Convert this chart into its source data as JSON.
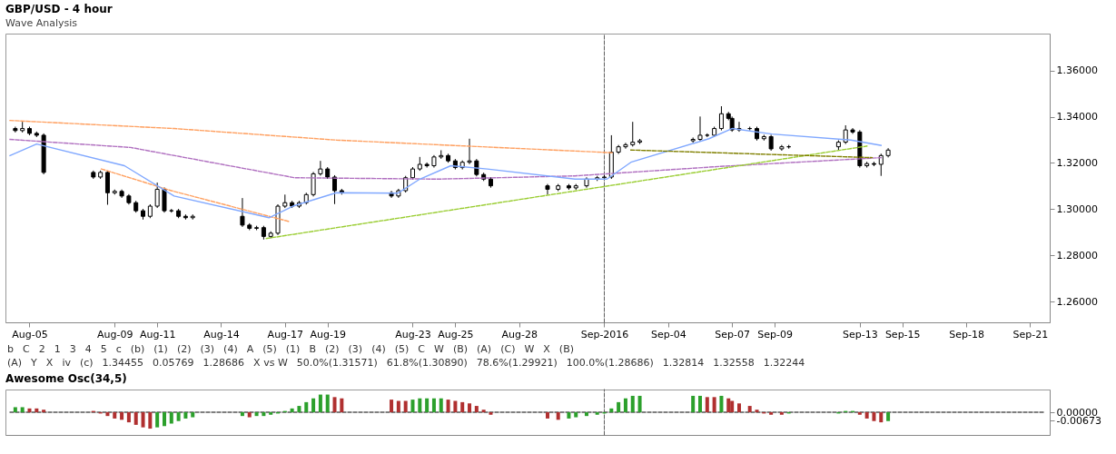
{
  "chart_data": [
    {
      "type": "candlestick",
      "title": "GBP/USD - 4 hour",
      "subtitle": "Wave Analysis",
      "color": "#000000",
      "x": [
        "2016-08-04T08:00",
        "2016-08-04T16:00",
        "2016-08-05T00:00",
        "2016-08-05T08:00",
        "2016-08-05T16:00",
        "2016-08-08T00:00",
        "2016-08-08T08:00",
        "2016-08-08T16:00",
        "2016-08-09T00:00",
        "2016-08-09T08:00",
        "2016-08-09T16:00",
        "2016-08-10T00:00",
        "2016-08-10T08:00",
        "2016-08-10T16:00",
        "2016-08-11T00:00",
        "2016-08-11T08:00",
        "2016-08-11T16:00",
        "2016-08-12T00:00",
        "2016-08-12T08:00",
        "2016-08-12T16:00",
        "2016-08-15T00:00",
        "2016-08-15T08:00",
        "2016-08-15T16:00",
        "2016-08-16T00:00",
        "2016-08-16T08:00",
        "2016-08-16T16:00",
        "2016-08-17T00:00",
        "2016-08-17T08:00",
        "2016-08-17T16:00",
        "2016-08-18T00:00",
        "2016-08-18T08:00",
        "2016-08-18T16:00",
        "2016-08-19T00:00",
        "2016-08-19T08:00",
        "2016-08-19T16:00",
        "2016-08-22T00:00",
        "2016-08-22T08:00",
        "2016-08-22T16:00",
        "2016-08-23T00:00",
        "2016-08-23T08:00",
        "2016-08-23T16:00",
        "2016-08-24T00:00",
        "2016-08-24T08:00",
        "2016-08-24T16:00",
        "2016-08-25T00:00",
        "2016-08-25T08:00",
        "2016-08-25T16:00",
        "2016-08-26T00:00",
        "2016-08-26T08:00",
        "2016-08-26T16:00",
        "2016-08-29T08:00",
        "2016-08-29T20:00",
        "2016-08-30T08:00",
        "2016-08-30T16:00",
        "2016-08-31T04:00",
        "2016-08-31T16:00",
        "2016-09-01T00:00",
        "2016-09-01T08:00",
        "2016-09-01T16:00",
        "2016-09-02T00:00",
        "2016-09-02T08:00",
        "2016-09-02T16:00",
        "2016-09-05T04:00",
        "2016-09-05T12:00",
        "2016-09-05T20:00",
        "2016-09-06T04:00",
        "2016-09-06T12:00",
        "2016-09-06T20:00",
        "2016-09-07T00:00",
        "2016-09-07T08:00",
        "2016-09-07T20:00",
        "2016-09-08T04:00",
        "2016-09-08T12:00",
        "2016-09-08T20:00",
        "2016-09-09T08:00",
        "2016-09-09T16:00",
        "2016-09-12T00:00",
        "2016-09-12T08:00",
        "2016-09-12T16:00",
        "2016-09-13T00:00",
        "2016-09-13T08:00",
        "2016-09-13T16:00",
        "2016-09-14T00:00",
        "2016-09-14T08:00"
      ],
      "ohlc": [
        [
          1.3349,
          1.3357,
          1.3332,
          1.334
        ],
        [
          1.334,
          1.3378,
          1.3332,
          1.3349
        ],
        [
          1.3349,
          1.3357,
          1.332,
          1.3328
        ],
        [
          1.3328,
          1.3336,
          1.3312,
          1.332
        ],
        [
          1.332,
          1.3328,
          1.3151,
          1.3159
        ],
        [
          1.3159,
          1.3167,
          1.3131,
          1.3139
        ],
        [
          1.3139,
          1.3167,
          1.3131,
          1.3159
        ],
        [
          1.3159,
          1.3167,
          1.3019,
          1.3071
        ],
        [
          1.3071,
          1.3085,
          1.3063,
          1.3077
        ],
        [
          1.3077,
          1.3085,
          1.3049,
          1.3057
        ],
        [
          1.3057,
          1.3065,
          1.302,
          1.3028
        ],
        [
          1.3028,
          1.3036,
          1.2985,
          1.2993
        ],
        [
          1.2993,
          1.3001,
          1.2955,
          1.2969
        ],
        [
          1.2969,
          1.3021,
          1.2961,
          1.3013
        ],
        [
          1.3013,
          1.3115,
          1.3005,
          1.3086
        ],
        [
          1.3086,
          1.3094,
          1.2985,
          1.2993
        ],
        [
          1.2993,
          1.3001,
          1.2985,
          1.2993
        ],
        [
          1.2993,
          1.3001,
          1.2961,
          1.2969
        ],
        [
          1.2969,
          1.2977,
          1.2955,
          1.2963
        ],
        [
          1.2963,
          1.2977,
          1.2955,
          1.2969
        ],
        [
          1.2969,
          1.3048,
          1.2923,
          1.2931
        ],
        [
          1.2931,
          1.2939,
          1.2909,
          1.2917
        ],
        [
          1.2917,
          1.2928,
          1.2909,
          1.292
        ],
        [
          1.292,
          1.2928,
          1.28686,
          1.2882
        ],
        [
          1.2882,
          1.2904,
          1.2874,
          1.2896
        ],
        [
          1.2896,
          1.3021,
          1.2888,
          1.3013
        ],
        [
          1.3013,
          1.3063,
          1.3005,
          1.3028
        ],
        [
          1.3028,
          1.3036,
          1.3005,
          1.3013
        ],
        [
          1.3013,
          1.3036,
          1.3005,
          1.3028
        ],
        [
          1.3028,
          1.3071,
          1.302,
          1.3063
        ],
        [
          1.3063,
          1.3161,
          1.3055,
          1.3153
        ],
        [
          1.3153,
          1.3209,
          1.3145,
          1.3174
        ],
        [
          1.3174,
          1.3182,
          1.3131,
          1.3139
        ],
        [
          1.3139,
          1.3147,
          1.3022,
          1.308
        ],
        [
          1.308,
          1.3088,
          1.3063,
          1.3071
        ],
        [
          1.3071,
          1.3079,
          1.3049,
          1.3057
        ],
        [
          1.3057,
          1.3088,
          1.3049,
          1.308
        ],
        [
          1.308,
          1.3144,
          1.3072,
          1.3136
        ],
        [
          1.3136,
          1.3182,
          1.3128,
          1.3174
        ],
        [
          1.3174,
          1.3226,
          1.3166,
          1.3194
        ],
        [
          1.3194,
          1.3202,
          1.318,
          1.3188
        ],
        [
          1.3188,
          1.3234,
          1.318,
          1.3226
        ],
        [
          1.3226,
          1.3255,
          1.3218,
          1.3232
        ],
        [
          1.3232,
          1.324,
          1.3201,
          1.3209
        ],
        [
          1.3209,
          1.3217,
          1.3172,
          1.318
        ],
        [
          1.318,
          1.3211,
          1.3172,
          1.3203
        ],
        [
          1.3203,
          1.3305,
          1.3195,
          1.3209
        ],
        [
          1.3209,
          1.3217,
          1.3142,
          1.315
        ],
        [
          1.315,
          1.3158,
          1.3122,
          1.313
        ],
        [
          1.313,
          1.3138,
          1.3093,
          1.3101
        ],
        [
          1.3101,
          1.3109,
          1.3063,
          1.3086
        ],
        [
          1.3086,
          1.3109,
          1.3078,
          1.3101
        ],
        [
          1.3101,
          1.3109,
          1.3084,
          1.3092
        ],
        [
          1.3092,
          1.3109,
          1.3084,
          1.3101
        ],
        [
          1.3101,
          1.3138,
          1.3093,
          1.313
        ],
        [
          1.313,
          1.3144,
          1.3122,
          1.3136
        ],
        [
          1.3136,
          1.3147,
          1.3128,
          1.3139
        ],
        [
          1.3139,
          1.332,
          1.3131,
          1.3247
        ],
        [
          1.3247,
          1.3278,
          1.3239,
          1.327
        ],
        [
          1.327,
          1.3287,
          1.3262,
          1.3279
        ],
        [
          1.3279,
          1.3378,
          1.3271,
          1.329
        ],
        [
          1.329,
          1.3304,
          1.3282,
          1.3296
        ],
        [
          1.3296,
          1.331,
          1.3288,
          1.3302
        ],
        [
          1.3302,
          1.3401,
          1.3294,
          1.332
        ],
        [
          1.332,
          1.3328,
          1.3312,
          1.332
        ],
        [
          1.332,
          1.3357,
          1.3312,
          1.3349
        ],
        [
          1.3349,
          1.34455,
          1.3341,
          1.3413
        ],
        [
          1.3413,
          1.3421,
          1.3385,
          1.3393
        ],
        [
          1.3393,
          1.3401,
          1.3335,
          1.3343
        ],
        [
          1.3343,
          1.3378,
          1.3335,
          1.3349
        ],
        [
          1.3349,
          1.3357,
          1.3341,
          1.3349
        ],
        [
          1.3349,
          1.3357,
          1.3297,
          1.3305
        ],
        [
          1.3305,
          1.3322,
          1.3297,
          1.3314
        ],
        [
          1.3314,
          1.3322,
          1.3253,
          1.3261
        ],
        [
          1.3261,
          1.3278,
          1.3253,
          1.327
        ],
        [
          1.327,
          1.3278,
          1.3262,
          1.327
        ],
        [
          1.327,
          1.3298,
          1.3255,
          1.329
        ],
        [
          1.329,
          1.3363,
          1.3282,
          1.3343
        ],
        [
          1.3343,
          1.3351,
          1.3326,
          1.3334
        ],
        [
          1.3334,
          1.3342,
          1.318,
          1.3188
        ],
        [
          1.3188,
          1.3205,
          1.318,
          1.3197
        ],
        [
          1.3197,
          1.3205,
          1.3186,
          1.3194
        ],
        [
          1.3194,
          1.324,
          1.3144,
          1.3232
        ],
        [
          1.3232,
          1.3264,
          1.3224,
          1.32558
        ]
      ],
      "series": [
        {
          "type": "line",
          "color": "#ffa060",
          "line_style": "dashed",
          "x": [
            "2016-08-04T02:00",
            "2016-08-11T19:00",
            "2016-08-19T10:00",
            "2016-09-01T10:00"
          ],
          "values": [
            1.3384,
            1.3349,
            1.3299,
            1.3244
          ]
        },
        {
          "type": "line",
          "color": "#ffa060",
          "line_style": "dashed",
          "x": [
            "2016-08-08T09:00",
            "2016-08-11T16:00",
            "2016-08-17T05:00"
          ],
          "values": [
            1.3174,
            1.308,
            1.2946
          ]
        },
        {
          "type": "line",
          "color": "#b070c0",
          "line_style": "dashed",
          "x": [
            "2016-08-04T02:00",
            "2016-08-09T18:00",
            "2016-08-15T05:00",
            "2016-08-17T11:00",
            "2016-08-24T05:00",
            "2016-08-30T15:00",
            "2016-09-06T11:00",
            "2016-09-14T00:00"
          ],
          "values": [
            1.3302,
            1.3267,
            1.3174,
            1.3136,
            1.313,
            1.3144,
            1.3185,
            1.3223
          ]
        },
        {
          "type": "line",
          "color": "#80a8ff",
          "line_style": "solid",
          "x": [
            "2016-08-04T02:00",
            "2016-08-05T08:00",
            "2016-08-09T11:00",
            "2016-08-11T19:00",
            "2016-08-16T06:00",
            "2016-08-17T09:00",
            "2016-08-19T10:00",
            "2016-08-22T07:00",
            "2016-08-23T08:00",
            "2016-08-24T19:00",
            "2016-08-26T12:00",
            "2016-08-30T15:00",
            "2016-09-01T03:00",
            "2016-09-02T06:00",
            "2016-09-05T22:00",
            "2016-09-07T00:00",
            "2016-09-08T21:00",
            "2016-09-12T14:00",
            "2016-09-14T00:00"
          ],
          "values": [
            1.3232,
            1.3282,
            1.3188,
            1.3057,
            1.2963,
            1.3013,
            1.3071,
            1.3069,
            1.313,
            1.3188,
            1.3174,
            1.313,
            1.313,
            1.3203,
            1.3305,
            1.3349,
            1.3325,
            1.3299,
            1.3276
          ]
        },
        {
          "type": "line",
          "color": "#9acd32",
          "line_style": "dashed",
          "x": [
            "2016-08-16T03:00",
            "2016-09-13T08:00"
          ],
          "values": [
            1.2873,
            1.3273
          ]
        },
        {
          "type": "line",
          "color": "#808000",
          "line_style": "dashed",
          "x": [
            "2016-09-02T06:00",
            "2016-09-13T14:00"
          ],
          "values": [
            1.3256,
            1.3223
          ]
        }
      ],
      "ref_lines": [
        {
          "axis": "x",
          "value": "2016-09-01T00:00",
          "line_style": "dashed",
          "color": "#606060"
        }
      ],
      "annotations": [
        "b",
        "C",
        "2",
        "1",
        "3",
        "4",
        "5",
        "c",
        "(b)",
        "(1)",
        "(2)",
        "(3)",
        "(4)",
        "A",
        "(5)",
        "(1)",
        "B",
        "(2)",
        "(3)",
        "(4)",
        "(5)",
        "C",
        "W",
        "(B)",
        "(A)",
        "(C)",
        "W",
        "X",
        "(B)",
        "(A)",
        "Y",
        "X",
        "iv",
        "(c)",
        "1.34455",
        "0.05769",
        "1.28686",
        "X vs W",
        "50.0%(1.31571)",
        "61.8%(1.30890)",
        "78.6%(1.29921)",
        "100.0%(1.28686)",
        "1.32814",
        "1.32558",
        "1.32244"
      ],
      "xlim": [
        "2016-08-04T02:00",
        "2016-09-21T17:00"
      ],
      "xticks": [
        {
          "value": "2016-08-05",
          "label": "Aug-05"
        },
        {
          "value": "2016-08-09",
          "label": "Aug-09"
        },
        {
          "value": "2016-08-11",
          "label": "Aug-11"
        },
        {
          "value": "2016-08-14",
          "label": "Aug-14"
        },
        {
          "value": "2016-08-17",
          "label": "Aug-17"
        },
        {
          "value": "2016-08-19",
          "label": "Aug-19"
        },
        {
          "value": "2016-08-23",
          "label": "Aug-23"
        },
        {
          "value": "2016-08-25",
          "label": "Aug-25"
        },
        {
          "value": "2016-08-28",
          "label": "Aug-28"
        },
        {
          "value": "2016-09-01",
          "label": "Sep-2016"
        },
        {
          "value": "2016-09-04",
          "label": "Sep-04"
        },
        {
          "value": "2016-09-07",
          "label": "Sep-07"
        },
        {
          "value": "2016-09-09",
          "label": "Sep-09"
        },
        {
          "value": "2016-09-13",
          "label": "Sep-13"
        },
        {
          "value": "2016-09-15",
          "label": "Sep-15"
        },
        {
          "value": "2016-09-18",
          "label": "Sep-18"
        },
        {
          "value": "2016-09-21",
          "label": "Sep-21"
        }
      ],
      "ylim": [
        1.251,
        1.376
      ],
      "yticks": [
        {
          "value": 1.26,
          "label": "1.26000"
        },
        {
          "value": 1.28,
          "label": "1.28000"
        },
        {
          "value": 1.3,
          "label": "1.30000"
        },
        {
          "value": 1.32,
          "label": "1.32000"
        },
        {
          "value": 1.34,
          "label": "1.34000"
        },
        {
          "value": 1.36,
          "label": "1.36000"
        }
      ]
    },
    {
      "type": "bar",
      "title": "Awesome Osc(34,5)",
      "x": [
        "2016-08-04T08:00",
        "2016-08-04T16:00",
        "2016-08-05T00:00",
        "2016-08-05T08:00",
        "2016-08-05T16:00",
        "2016-08-08T00:00",
        "2016-08-08T08:00",
        "2016-08-08T16:00",
        "2016-08-09T00:00",
        "2016-08-09T08:00",
        "2016-08-09T16:00",
        "2016-08-10T00:00",
        "2016-08-10T08:00",
        "2016-08-10T16:00",
        "2016-08-11T00:00",
        "2016-08-11T08:00",
        "2016-08-11T16:00",
        "2016-08-12T00:00",
        "2016-08-12T08:00",
        "2016-08-12T16:00",
        "2016-08-15T00:00",
        "2016-08-15T08:00",
        "2016-08-15T16:00",
        "2016-08-16T00:00",
        "2016-08-16T08:00",
        "2016-08-16T16:00",
        "2016-08-17T00:00",
        "2016-08-17T08:00",
        "2016-08-17T16:00",
        "2016-08-18T00:00",
        "2016-08-18T08:00",
        "2016-08-18T16:00",
        "2016-08-19T00:00",
        "2016-08-19T08:00",
        "2016-08-19T16:00",
        "2016-08-22T00:00",
        "2016-08-22T08:00",
        "2016-08-22T16:00",
        "2016-08-23T00:00",
        "2016-08-23T08:00",
        "2016-08-23T16:00",
        "2016-08-24T00:00",
        "2016-08-24T08:00",
        "2016-08-24T16:00",
        "2016-08-25T00:00",
        "2016-08-25T08:00",
        "2016-08-25T16:00",
        "2016-08-26T00:00",
        "2016-08-26T08:00",
        "2016-08-26T16:00",
        "2016-08-29T08:00",
        "2016-08-29T20:00",
        "2016-08-30T08:00",
        "2016-08-30T16:00",
        "2016-08-31T04:00",
        "2016-08-31T16:00",
        "2016-09-01T00:00",
        "2016-09-01T08:00",
        "2016-09-01T16:00",
        "2016-09-02T00:00",
        "2016-09-02T08:00",
        "2016-09-02T16:00",
        "2016-09-05T04:00",
        "2016-09-05T12:00",
        "2016-09-05T20:00",
        "2016-09-06T04:00",
        "2016-09-06T12:00",
        "2016-09-06T20:00",
        "2016-09-07T00:00",
        "2016-09-07T08:00",
        "2016-09-07T20:00",
        "2016-09-08T04:00",
        "2016-09-08T12:00",
        "2016-09-08T20:00",
        "2016-09-09T08:00",
        "2016-09-09T16:00",
        "2016-09-12T00:00",
        "2016-09-12T08:00",
        "2016-09-12T16:00",
        "2016-09-13T00:00",
        "2016-09-13T08:00",
        "2016-09-13T16:00",
        "2016-09-14T00:00",
        "2016-09-14T08:00"
      ],
      "values": [
        0.004,
        0.004,
        0.003,
        0.003,
        0.002,
        0.001,
        -0.001,
        -0.003,
        -0.005,
        -0.006,
        -0.008,
        -0.01,
        -0.012,
        -0.013,
        -0.012,
        -0.011,
        -0.009,
        -0.007,
        -0.005,
        -0.004,
        -0.003,
        -0.004,
        -0.003,
        -0.003,
        -0.002,
        -0.001,
        0.001,
        0.003,
        0.005,
        0.008,
        0.011,
        0.014,
        0.014,
        0.012,
        0.011,
        0.01,
        0.009,
        0.009,
        0.01,
        0.011,
        0.011,
        0.011,
        0.011,
        0.01,
        0.009,
        0.008,
        0.007,
        0.005,
        0.002,
        -0.002,
        -0.005,
        -0.006,
        -0.005,
        -0.004,
        -0.003,
        -0.002,
        -0.001,
        0.003,
        0.008,
        0.011,
        0.013,
        0.013,
        0.013,
        0.013,
        0.012,
        0.012,
        0.013,
        0.011,
        0.009,
        0.007,
        0.005,
        0.002,
        -0.001,
        -0.002,
        -0.002,
        -0.001,
        -0.001,
        0.001,
        0.001,
        -0.002,
        -0.005,
        -0.007,
        -0.008,
        -0.007
      ],
      "colors": [
        "#2ca02c",
        "#2ca02c",
        "#b03030",
        "#b03030",
        "#b03030",
        "#b03030",
        "#b03030",
        "#b03030",
        "#b03030",
        "#b03030",
        "#b03030",
        "#b03030",
        "#b03030",
        "#b03030",
        "#2ca02c",
        "#2ca02c",
        "#2ca02c",
        "#2ca02c",
        "#2ca02c",
        "#2ca02c",
        "#2ca02c",
        "#b03030",
        "#2ca02c",
        "#2ca02c",
        "#2ca02c",
        "#2ca02c",
        "#2ca02c",
        "#2ca02c",
        "#2ca02c",
        "#2ca02c",
        "#2ca02c",
        "#2ca02c",
        "#2ca02c",
        "#b03030",
        "#b03030",
        "#b03030",
        "#b03030",
        "#b03030",
        "#2ca02c",
        "#2ca02c",
        "#2ca02c",
        "#2ca02c",
        "#2ca02c",
        "#b03030",
        "#b03030",
        "#b03030",
        "#b03030",
        "#b03030",
        "#b03030",
        "#b03030",
        "#b03030",
        "#b03030",
        "#2ca02c",
        "#2ca02c",
        "#2ca02c",
        "#2ca02c",
        "#2ca02c",
        "#2ca02c",
        "#2ca02c",
        "#2ca02c",
        "#2ca02c",
        "#2ca02c",
        "#2ca02c",
        "#2ca02c",
        "#b03030",
        "#b03030",
        "#2ca02c",
        "#b03030",
        "#b03030",
        "#b03030",
        "#b03030",
        "#b03030",
        "#b03030",
        "#b03030",
        "#b03030",
        "#2ca02c",
        "#2ca02c",
        "#2ca02c",
        "#2ca02c",
        "#b03030",
        "#b03030",
        "#b03030",
        "#b03030",
        "#2ca02c"
      ],
      "ref_lines": [
        {
          "axis": "y",
          "value": 0,
          "line_style": "dashed",
          "color": "#000000"
        },
        {
          "axis": "x",
          "value": "2016-09-01T00:00",
          "line_style": "dashed",
          "color": "#606060"
        }
      ],
      "xlim": [
        "2016-08-04T02:00",
        "2016-09-21T17:00"
      ],
      "tick_labels": "y",
      "ylim": [
        -0.018,
        0.018
      ],
      "yticks": [
        {
          "value": 0,
          "label": "0.00000"
        },
        {
          "value": -0.00673,
          "label": "-0.00673"
        }
      ]
    }
  ]
}
